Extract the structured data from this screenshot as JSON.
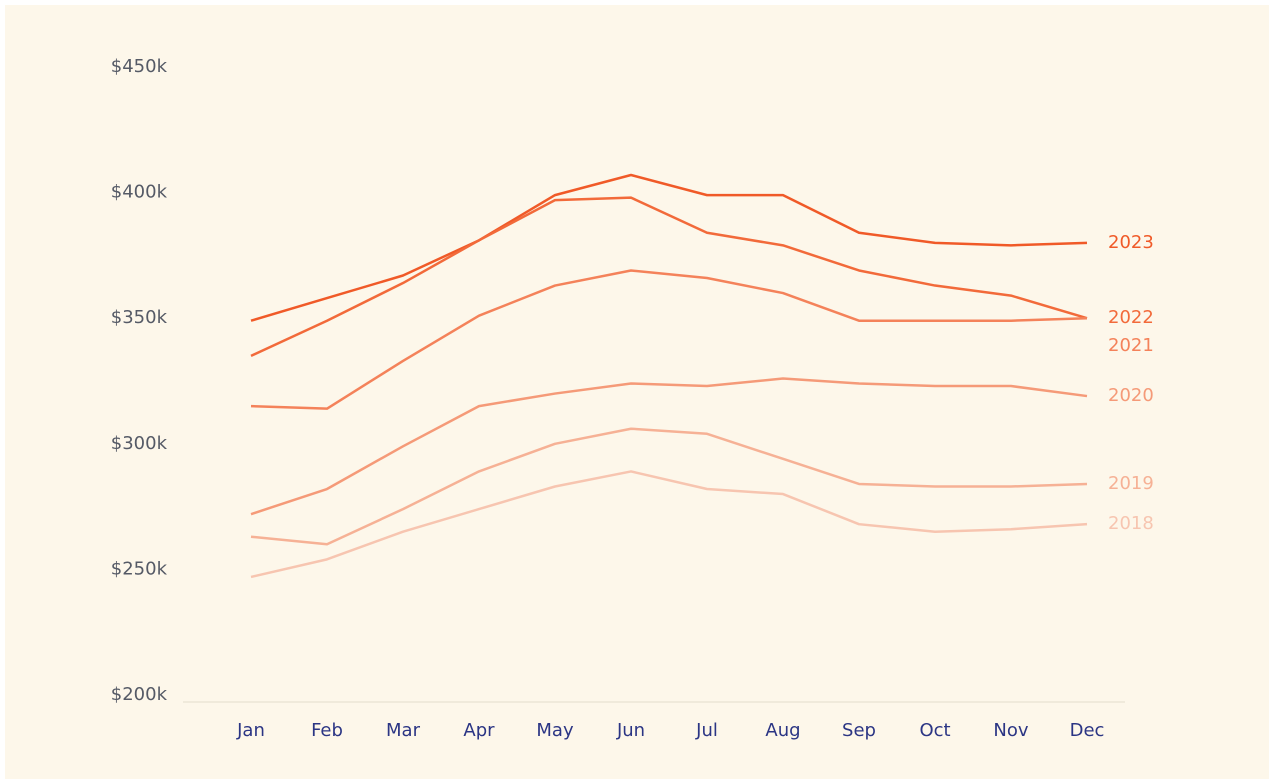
{
  "chart_data": {
    "type": "line",
    "categories": [
      "Jan",
      "Feb",
      "Mar",
      "Apr",
      "May",
      "Jun",
      "Jul",
      "Aug",
      "Sep",
      "Oct",
      "Nov",
      "Dec"
    ],
    "series": [
      {
        "name": "2023",
        "color": "#f05a28",
        "values": [
          349000,
          358000,
          367000,
          381000,
          399000,
          407000,
          399000,
          399000,
          384000,
          380000,
          379000,
          380000
        ]
      },
      {
        "name": "2022",
        "color": "#f26a3a",
        "values": [
          335000,
          349000,
          364000,
          381000,
          397000,
          398000,
          384000,
          379000,
          369000,
          363000,
          359000,
          350000
        ]
      },
      {
        "name": "2021",
        "color": "#f4825a",
        "values": [
          315000,
          314000,
          333000,
          351000,
          363000,
          369000,
          366000,
          360000,
          349000,
          349000,
          349000,
          350000
        ]
      },
      {
        "name": "2020",
        "color": "#f59a78",
        "values": [
          272000,
          282000,
          299000,
          315000,
          320000,
          324000,
          323000,
          326000,
          324000,
          323000,
          323000,
          319000
        ]
      },
      {
        "name": "2019",
        "color": "#f6b195",
        "values": [
          263000,
          260000,
          274000,
          289000,
          300000,
          306000,
          304000,
          294000,
          284000,
          283000,
          283000,
          284000
        ]
      },
      {
        "name": "2018",
        "color": "#f7c5b0",
        "values": [
          247000,
          254000,
          265000,
          274000,
          283000,
          289000,
          282000,
          280000,
          268000,
          265000,
          266000,
          268000
        ]
      }
    ],
    "ylim": [
      200000,
      450000
    ],
    "yticks": [
      {
        "value": 200000,
        "label": "$200k"
      },
      {
        "value": 250000,
        "label": "$250k"
      },
      {
        "value": 300000,
        "label": "$300k"
      },
      {
        "value": 350000,
        "label": "$350k"
      },
      {
        "value": 400000,
        "label": "$400k"
      },
      {
        "value": 450000,
        "label": "$450k"
      }
    ],
    "grid": false
  }
}
